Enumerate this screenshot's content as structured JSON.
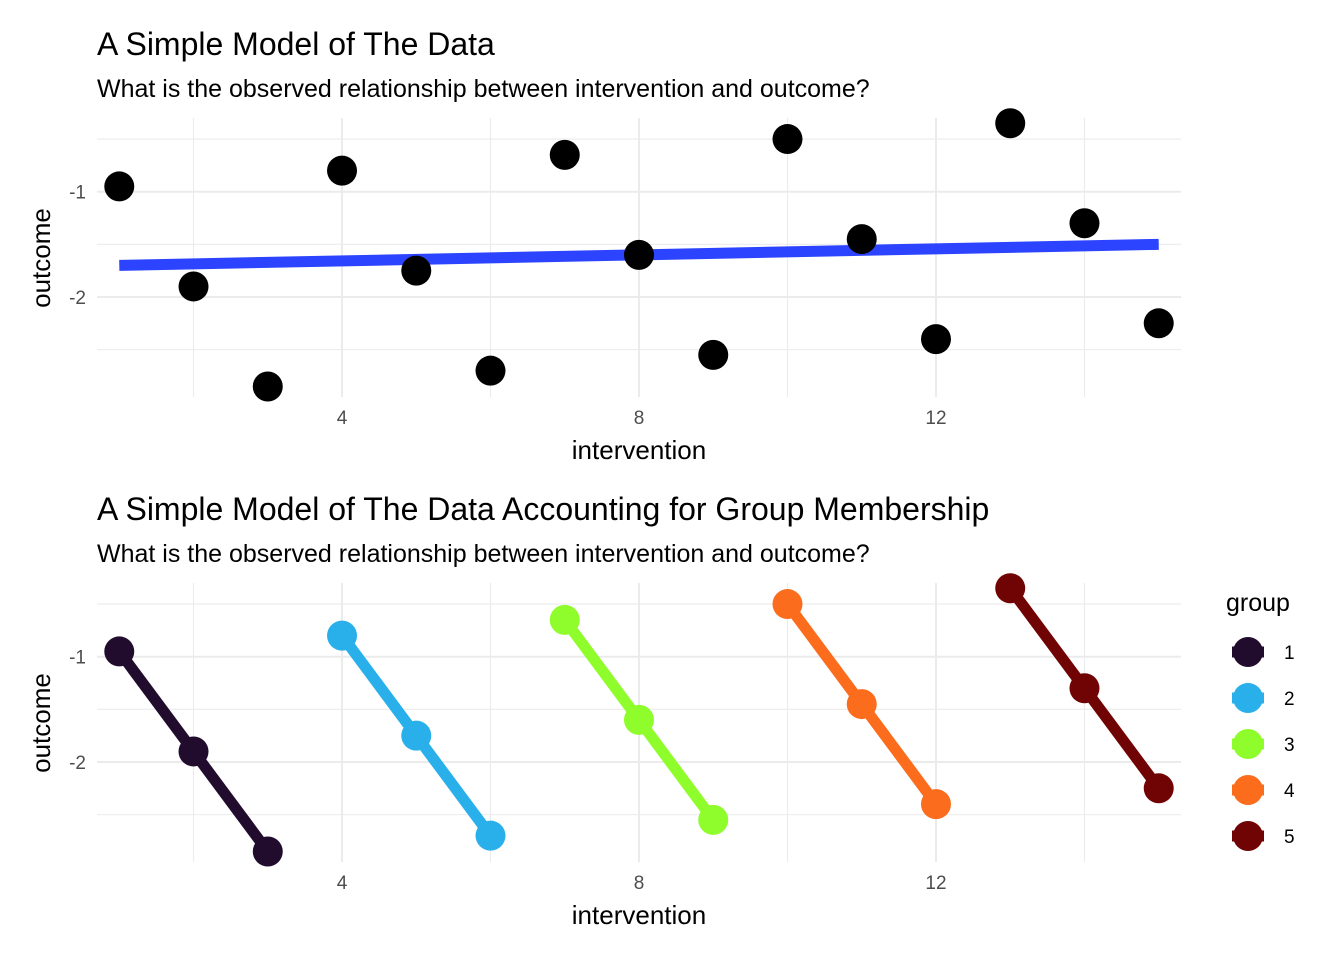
{
  "chart_data": [
    {
      "type": "scatter",
      "title": "A Simple Model of The Data",
      "subtitle": "What is the observed relationship between intervention and outcome?",
      "xlabel": "intervention",
      "ylabel": "outcome",
      "xlim": [
        0.7,
        15.3
      ],
      "ylim": [
        -2.95,
        -0.3
      ],
      "x_ticks": [
        4,
        8,
        12
      ],
      "y_ticks": [
        -1,
        -2
      ],
      "grid": true,
      "point_color": "#000000",
      "points": [
        {
          "x": 1,
          "y": -0.95
        },
        {
          "x": 2,
          "y": -1.9
        },
        {
          "x": 3,
          "y": -2.85
        },
        {
          "x": 4,
          "y": -0.8
        },
        {
          "x": 5,
          "y": -1.75
        },
        {
          "x": 6,
          "y": -2.7
        },
        {
          "x": 7,
          "y": -0.65
        },
        {
          "x": 8,
          "y": -1.6
        },
        {
          "x": 9,
          "y": -2.55
        },
        {
          "x": 10,
          "y": -0.5
        },
        {
          "x": 11,
          "y": -1.45
        },
        {
          "x": 12,
          "y": -2.4
        },
        {
          "x": 13,
          "y": -0.35
        },
        {
          "x": 14,
          "y": -1.3
        },
        {
          "x": 15,
          "y": -2.25
        }
      ],
      "fit_line": {
        "x": [
          1,
          15
        ],
        "y": [
          -1.7,
          -1.5
        ],
        "color": "#2c44ff"
      }
    },
    {
      "type": "line",
      "title": "A Simple Model of The Data Accounting for Group Membership",
      "subtitle": "What is the observed relationship between intervention and outcome?",
      "xlabel": "intervention",
      "ylabel": "outcome",
      "xlim": [
        0.7,
        15.3
      ],
      "ylim": [
        -2.95,
        -0.3
      ],
      "x_ticks": [
        4,
        8,
        12
      ],
      "y_ticks": [
        -1,
        -2
      ],
      "grid": true,
      "legend": {
        "title": "group",
        "position": "right"
      },
      "series": [
        {
          "name": "1",
          "color": "#210c2e",
          "x": [
            1,
            2,
            3
          ],
          "y": [
            -0.95,
            -1.9,
            -2.85
          ]
        },
        {
          "name": "2",
          "color": "#29b0ea",
          "x": [
            4,
            5,
            6
          ],
          "y": [
            -0.8,
            -1.75,
            -2.7
          ]
        },
        {
          "name": "3",
          "color": "#8ffc2b",
          "x": [
            7,
            8,
            9
          ],
          "y": [
            -0.65,
            -1.6,
            -2.55
          ]
        },
        {
          "name": "4",
          "color": "#fb6c1d",
          "x": [
            10,
            11,
            12
          ],
          "y": [
            -0.5,
            -1.45,
            -2.4
          ]
        },
        {
          "name": "5",
          "color": "#700303",
          "x": [
            13,
            14,
            15
          ],
          "y": [
            -0.35,
            -1.3,
            -2.25
          ]
        }
      ]
    }
  ]
}
